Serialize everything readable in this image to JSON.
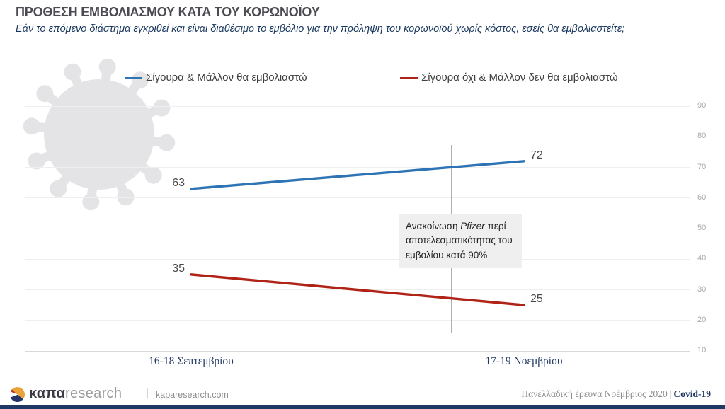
{
  "header": {
    "title": "ΠΡΟΘΕΣΗ ΕΜΒΟΛΙΑΣΜΟΥ ΚΑΤΑ ΤΟΥ ΚΟΡΩΝΟΪΟΥ",
    "subtitle": "Εάν το επόμενο διάστημα εγκριθεί και είναι διαθέσιμο το εμβόλιο για την πρόληψη του κορωνοϊού χωρίς κόστος, εσείς θα εμβολιαστείτε;"
  },
  "chart_data": {
    "type": "line",
    "categories": [
      "16-18 Σεπτεμβρίου",
      "17-19 Νοεμβρίου"
    ],
    "series": [
      {
        "name": "Σίγουρα & Μάλλον θα εμβολιαστώ",
        "color": "#2E74B5",
        "values": [
          63,
          72
        ]
      },
      {
        "name": "Σίγουρα όχι & Μάλλον δεν θα εμβολιαστώ",
        "color": "#B02418",
        "values": [
          35,
          25
        ]
      }
    ],
    "ylim": [
      10,
      90
    ],
    "yticks": [
      10,
      20,
      30,
      40,
      50,
      60,
      70,
      80,
      90
    ],
    "grid": true,
    "legend_position": "top",
    "annotation": {
      "text_before": "Ανακοίνωση ",
      "text_italic": "Pfizer",
      "text_after": " περί αποτελεσματικότητας του εμβολίου κατά 90%"
    }
  },
  "footer": {
    "brand_bold": "καπα",
    "brand_light": "research",
    "separator": "|",
    "website": "kaparesearch.com",
    "survey_label": "Πανελλαδική έρευνα Νοέμβριος 2020",
    "topic": "Covid-19"
  },
  "colors": {
    "accent_blue": "#2E74B5",
    "accent_red": "#B02418",
    "navy": "#1F3864",
    "watermark_gray": "#E4E4E7"
  }
}
